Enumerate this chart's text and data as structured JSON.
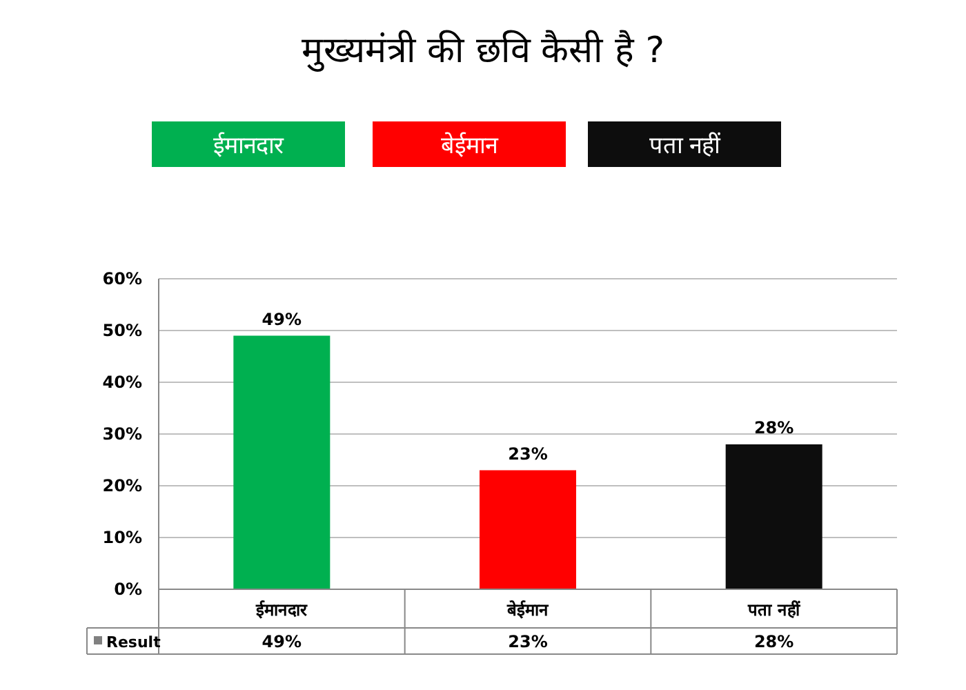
{
  "chart_data": {
    "type": "bar",
    "title": "मुख्यमंत्री की छवि कैसी है ?",
    "categories": [
      "ईमानदार",
      "बेईमान",
      "पता नहीं"
    ],
    "series": [
      {
        "name": "Result",
        "values": [
          49,
          23,
          28
        ],
        "colors": [
          "#00b050",
          "#ff0000",
          "#0d0d0d"
        ],
        "value_labels": [
          "49%",
          "23%",
          "28%"
        ]
      }
    ],
    "ylim": [
      0,
      60
    ],
    "yticks": [
      {
        "value": 0,
        "label": "0%"
      },
      {
        "value": 10,
        "label": "10%"
      },
      {
        "value": 20,
        "label": "20%"
      },
      {
        "value": 30,
        "label": "30%"
      },
      {
        "value": 40,
        "label": "40%"
      },
      {
        "value": 50,
        "label": "50%"
      },
      {
        "value": 60,
        "label": "60%"
      }
    ],
    "grid": "y",
    "legend": "bottom left"
  }
}
